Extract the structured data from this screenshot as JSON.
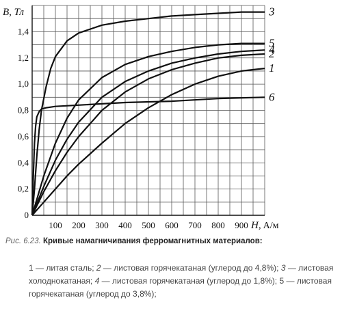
{
  "chart_data": {
    "type": "line",
    "ylabel": "B, Тл",
    "xlabel_var": "H,",
    "xlabel_unit": "А/м",
    "xlim": [
      0,
      1000
    ],
    "ylim": [
      0,
      1.6
    ],
    "grid": true,
    "x_ticks": [
      100,
      200,
      300,
      400,
      500,
      600,
      700,
      800,
      900
    ],
    "y_ticks": [
      {
        "v": 0,
        "label": "0"
      },
      {
        "v": 0.2,
        "label": "0,2"
      },
      {
        "v": 0.4,
        "label": "0,4"
      },
      {
        "v": 0.6,
        "label": "0,6"
      },
      {
        "v": 0.8,
        "label": "0,8"
      },
      {
        "v": 1.0,
        "label": "1,0"
      },
      {
        "v": 1.2,
        "label": "1,2"
      },
      {
        "v": 1.4,
        "label": "1,4"
      }
    ],
    "series": [
      {
        "name": "3",
        "points": [
          [
            0,
            0
          ],
          [
            10,
            0.2
          ],
          [
            20,
            0.45
          ],
          [
            30,
            0.65
          ],
          [
            40,
            0.8
          ],
          [
            60,
            0.98
          ],
          [
            80,
            1.12
          ],
          [
            100,
            1.21
          ],
          [
            150,
            1.33
          ],
          [
            200,
            1.39
          ],
          [
            300,
            1.45
          ],
          [
            400,
            1.48
          ],
          [
            500,
            1.5
          ],
          [
            600,
            1.52
          ],
          [
            700,
            1.53
          ],
          [
            800,
            1.54
          ],
          [
            900,
            1.55
          ],
          [
            1000,
            1.55
          ]
        ]
      },
      {
        "name": "5",
        "points": [
          [
            0,
            0
          ],
          [
            50,
            0.3
          ],
          [
            100,
            0.55
          ],
          [
            150,
            0.74
          ],
          [
            200,
            0.88
          ],
          [
            300,
            1.05
          ],
          [
            400,
            1.15
          ],
          [
            500,
            1.21
          ],
          [
            600,
            1.25
          ],
          [
            700,
            1.28
          ],
          [
            800,
            1.3
          ],
          [
            900,
            1.31
          ],
          [
            1000,
            1.31
          ]
        ]
      },
      {
        "name": "4",
        "points": [
          [
            0,
            0
          ],
          [
            50,
            0.22
          ],
          [
            100,
            0.42
          ],
          [
            150,
            0.58
          ],
          [
            200,
            0.71
          ],
          [
            300,
            0.9
          ],
          [
            400,
            1.02
          ],
          [
            500,
            1.1
          ],
          [
            600,
            1.16
          ],
          [
            700,
            1.2
          ],
          [
            800,
            1.23
          ],
          [
            900,
            1.25
          ],
          [
            1000,
            1.26
          ]
        ]
      },
      {
        "name": "2",
        "points": [
          [
            0,
            0
          ],
          [
            50,
            0.18
          ],
          [
            100,
            0.34
          ],
          [
            150,
            0.48
          ],
          [
            200,
            0.6
          ],
          [
            300,
            0.8
          ],
          [
            400,
            0.94
          ],
          [
            500,
            1.04
          ],
          [
            600,
            1.11
          ],
          [
            700,
            1.16
          ],
          [
            800,
            1.2
          ],
          [
            900,
            1.22
          ],
          [
            1000,
            1.23
          ]
        ]
      },
      {
        "name": "1",
        "points": [
          [
            0,
            0
          ],
          [
            50,
            0.1
          ],
          [
            100,
            0.2
          ],
          [
            150,
            0.3
          ],
          [
            200,
            0.39
          ],
          [
            300,
            0.55
          ],
          [
            400,
            0.7
          ],
          [
            500,
            0.82
          ],
          [
            600,
            0.92
          ],
          [
            700,
            1.0
          ],
          [
            800,
            1.06
          ],
          [
            900,
            1.1
          ],
          [
            1000,
            1.12
          ]
        ]
      },
      {
        "name": "6",
        "points": [
          [
            0,
            0
          ],
          [
            5,
            0.3
          ],
          [
            10,
            0.55
          ],
          [
            15,
            0.68
          ],
          [
            20,
            0.75
          ],
          [
            30,
            0.79
          ],
          [
            40,
            0.81
          ],
          [
            60,
            0.82
          ],
          [
            100,
            0.83
          ],
          [
            200,
            0.84
          ],
          [
            400,
            0.86
          ],
          [
            600,
            0.87
          ],
          [
            800,
            0.89
          ],
          [
            1000,
            0.9
          ]
        ]
      }
    ]
  },
  "caption": {
    "prefix": "Рис. 6.23.",
    "title": "Кривые намагничивания ферромагнитных материалов:"
  },
  "legend": {
    "i1": "1",
    "t1": " — литая сталь; ",
    "i2": "2",
    "t2": " — листовая горячекатаная (углерод до 4,8%); ",
    "i3": "3",
    "t3": " — листовая холоднокатаная; ",
    "i4": "4",
    "t4": " — листовая горячекатаная (углерод до 1,8%); 5 — листовая горячекатаная (углерод до 3,8%);"
  }
}
